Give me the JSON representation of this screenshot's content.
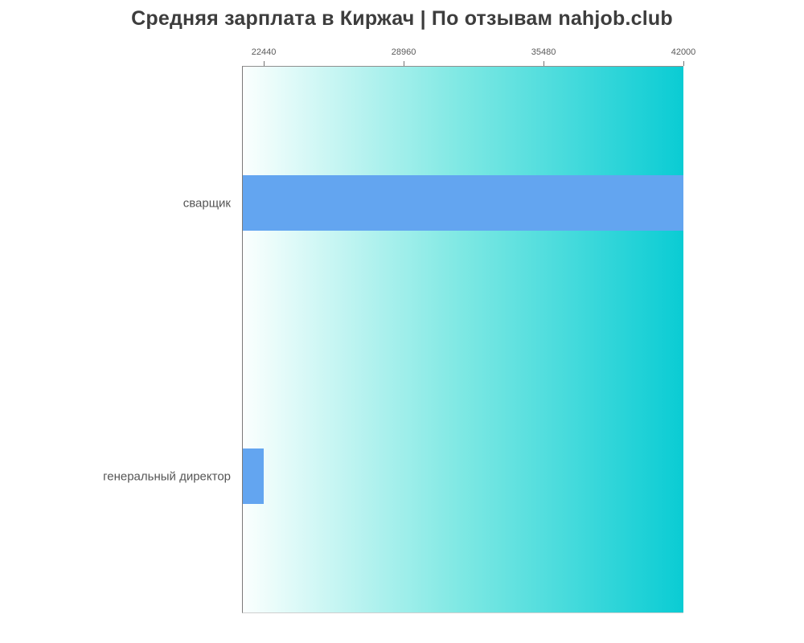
{
  "page": {
    "background_color": "#ffffff"
  },
  "chart_data": {
    "type": "bar",
    "orientation": "horizontal",
    "title": "Средняя зарплата в Киржач | По отзывам nahjob.club",
    "categories": [
      "сварщик",
      "генеральный директор"
    ],
    "values": [
      42000,
      22440
    ],
    "x_ticks": [
      22440,
      28960,
      35480,
      42000
    ],
    "xlim": [
      21462,
      42000
    ],
    "xlabel": "",
    "ylabel": "",
    "ticks_position": "top",
    "grid": false,
    "legend": false,
    "bar_color": "#63a5f0",
    "plot_bg_gradient_left": "#fbfffe",
    "plot_bg_gradient_mid": "#7de8e3",
    "plot_bg_gradient_right": "#0accd4",
    "axis_color": "#7a7a7a",
    "tick_label_color": "#5a5a5a",
    "category_label_color": "#555555",
    "title_color": "#3d3d3d"
  }
}
